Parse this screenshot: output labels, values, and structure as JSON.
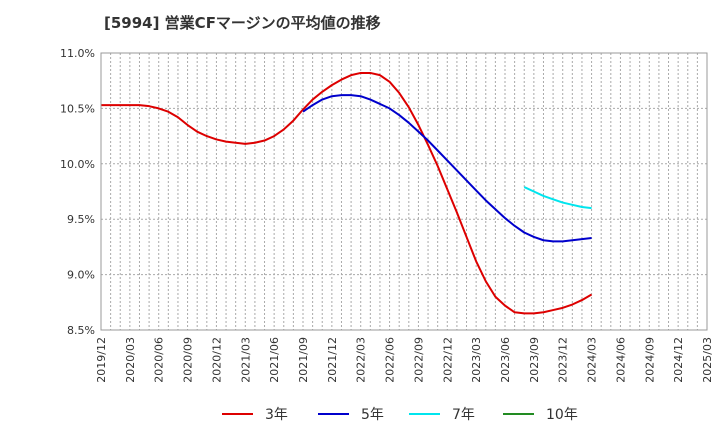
{
  "chart_data": {
    "type": "line",
    "title": "[5994]  営業CFマージンの平均値の推移",
    "xlabel": "",
    "ylabel": "",
    "y_unit": "%",
    "ylim": [
      8.5,
      11.0
    ],
    "yticks": [
      {
        "value": 11.0,
        "label": "11.0%"
      },
      {
        "value": 10.5,
        "label": "10.5%"
      },
      {
        "value": 10.0,
        "label": "10.0%"
      },
      {
        "value": 9.5,
        "label": "9.5%"
      },
      {
        "value": 9.0,
        "label": "9.0%"
      },
      {
        "value": 8.5,
        "label": "8.5%"
      }
    ],
    "x_categories": [
      "2019/12",
      "2020/03",
      "2020/06",
      "2020/09",
      "2020/12",
      "2021/03",
      "2021/06",
      "2021/09",
      "2021/12",
      "2022/03",
      "2022/06",
      "2022/09",
      "2022/12",
      "2023/03",
      "2023/06",
      "2023/09",
      "2023/12",
      "2024/03",
      "2024/06",
      "2024/09",
      "2024/12",
      "2025/03"
    ],
    "grid": true,
    "legend_position": "bottom",
    "series": [
      {
        "name": "3年",
        "color": "#dd0000",
        "points": [
          [
            "2019/12",
            10.53
          ],
          [
            "2020/01",
            10.53
          ],
          [
            "2020/02",
            10.53
          ],
          [
            "2020/03",
            10.53
          ],
          [
            "2020/04",
            10.53
          ],
          [
            "2020/05",
            10.52
          ],
          [
            "2020/06",
            10.5
          ],
          [
            "2020/07",
            10.47
          ],
          [
            "2020/08",
            10.42
          ],
          [
            "2020/09",
            10.35
          ],
          [
            "2020/10",
            10.29
          ],
          [
            "2020/11",
            10.25
          ],
          [
            "2020/12",
            10.22
          ],
          [
            "2021/01",
            10.2
          ],
          [
            "2021/02",
            10.19
          ],
          [
            "2021/03",
            10.18
          ],
          [
            "2021/04",
            10.19
          ],
          [
            "2021/05",
            10.21
          ],
          [
            "2021/06",
            10.25
          ],
          [
            "2021/07",
            10.31
          ],
          [
            "2021/08",
            10.39
          ],
          [
            "2021/09",
            10.49
          ],
          [
            "2021/10",
            10.58
          ],
          [
            "2021/11",
            10.65
          ],
          [
            "2021/12",
            10.71
          ],
          [
            "2022/01",
            10.76
          ],
          [
            "2022/02",
            10.8
          ],
          [
            "2022/03",
            10.82
          ],
          [
            "2022/04",
            10.82
          ],
          [
            "2022/05",
            10.8
          ],
          [
            "2022/06",
            10.74
          ],
          [
            "2022/07",
            10.64
          ],
          [
            "2022/08",
            10.51
          ],
          [
            "2022/09",
            10.35
          ],
          [
            "2022/10",
            10.17
          ],
          [
            "2022/11",
            9.98
          ],
          [
            "2022/12",
            9.77
          ],
          [
            "2023/01",
            9.56
          ],
          [
            "2023/02",
            9.34
          ],
          [
            "2023/03",
            9.12
          ],
          [
            "2023/04",
            8.94
          ],
          [
            "2023/05",
            8.8
          ],
          [
            "2023/06",
            8.72
          ],
          [
            "2023/07",
            8.66
          ],
          [
            "2023/08",
            8.65
          ],
          [
            "2023/09",
            8.65
          ],
          [
            "2023/10",
            8.66
          ],
          [
            "2023/11",
            8.68
          ],
          [
            "2023/12",
            8.7
          ],
          [
            "2024/01",
            8.73
          ],
          [
            "2024/02",
            8.77
          ],
          [
            "2024/03",
            8.82
          ]
        ]
      },
      {
        "name": "5年",
        "color": "#0000cc",
        "points": [
          [
            "2021/09",
            10.47
          ],
          [
            "2021/10",
            10.53
          ],
          [
            "2021/11",
            10.58
          ],
          [
            "2021/12",
            10.61
          ],
          [
            "2022/01",
            10.62
          ],
          [
            "2022/02",
            10.62
          ],
          [
            "2022/03",
            10.61
          ],
          [
            "2022/04",
            10.58
          ],
          [
            "2022/05",
            10.54
          ],
          [
            "2022/06",
            10.5
          ],
          [
            "2022/07",
            10.44
          ],
          [
            "2022/08",
            10.37
          ],
          [
            "2022/09",
            10.29
          ],
          [
            "2022/10",
            10.21
          ],
          [
            "2022/11",
            10.12
          ],
          [
            "2022/12",
            10.03
          ],
          [
            "2023/01",
            9.94
          ],
          [
            "2023/02",
            9.85
          ],
          [
            "2023/03",
            9.76
          ],
          [
            "2023/04",
            9.67
          ],
          [
            "2023/05",
            9.59
          ],
          [
            "2023/06",
            9.51
          ],
          [
            "2023/07",
            9.44
          ],
          [
            "2023/08",
            9.38
          ],
          [
            "2023/09",
            9.34
          ],
          [
            "2023/10",
            9.31
          ],
          [
            "2023/11",
            9.3
          ],
          [
            "2023/12",
            9.3
          ],
          [
            "2024/01",
            9.31
          ],
          [
            "2024/02",
            9.32
          ],
          [
            "2024/03",
            9.33
          ]
        ]
      },
      {
        "name": "7年",
        "color": "#00e5ee",
        "points": [
          [
            "2023/08",
            9.79
          ],
          [
            "2023/09",
            9.75
          ],
          [
            "2023/10",
            9.71
          ],
          [
            "2023/11",
            9.68
          ],
          [
            "2023/12",
            9.65
          ],
          [
            "2024/01",
            9.63
          ],
          [
            "2024/02",
            9.61
          ],
          [
            "2024/03",
            9.6
          ]
        ]
      },
      {
        "name": "10年",
        "color": "#228b22",
        "points": []
      }
    ]
  }
}
